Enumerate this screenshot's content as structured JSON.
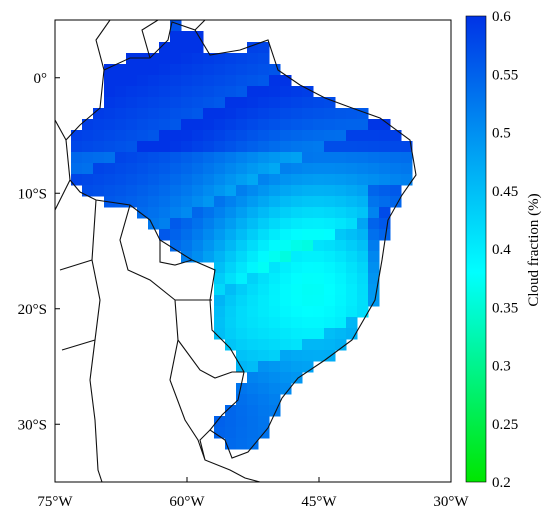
{
  "chart_data": {
    "type": "heatmap",
    "title": "",
    "xlabel": "",
    "ylabel": "",
    "x_ticks": [
      {
        "value": -75,
        "label": "75°W"
      },
      {
        "value": -60,
        "label": "60°W"
      },
      {
        "value": -45,
        "label": "45°W"
      },
      {
        "value": -30,
        "label": "30°W"
      }
    ],
    "y_ticks": [
      {
        "value": 0,
        "label": "0°"
      },
      {
        "value": -10,
        "label": "10°S"
      },
      {
        "value": -20,
        "label": "20°S"
      },
      {
        "value": -30,
        "label": "30°S"
      }
    ],
    "xlim": [
      -75,
      -30
    ],
    "ylim": [
      -35,
      5
    ],
    "colorbar": {
      "label": "Cloud fraction (%)",
      "range": [
        0.2,
        0.6
      ],
      "ticks": [
        "0.6",
        "0.55",
        "0.5",
        "0.45",
        "0.4",
        "0.35",
        "0.3",
        "0.25",
        "0.2"
      ],
      "colors": [
        "#00e600",
        "#00ffff",
        "#0033e6"
      ]
    },
    "region_note": "Brazil gridded cloud fraction, values highest (~0.55-0.6) over the north/Amazon and southeast coast, lowest (~0.35-0.4) over central Brazil"
  }
}
